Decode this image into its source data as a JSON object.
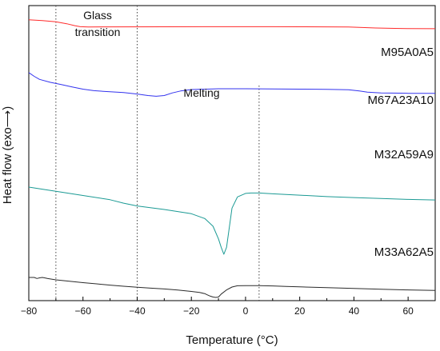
{
  "chart_data": {
    "type": "line",
    "xlabel": "Temperature (°C)",
    "ylabel": "Heat flow (exo⟶)",
    "xlim": [
      -80,
      70
    ],
    "xticks": [
      -80,
      -60,
      -40,
      -20,
      0,
      20,
      40,
      60
    ],
    "grid": false,
    "legend": "none",
    "annotations": {
      "glass_transition": "Glass\ntransition",
      "melting": "Melting"
    },
    "reference_lines_x": [
      -70,
      -40,
      5
    ],
    "series": [
      {
        "name": "M95A0A5",
        "color": "#ff2b2b",
        "x": [
          -80,
          -75,
          -70,
          -66,
          -63,
          -61,
          -58,
          -50,
          -30,
          -10,
          0,
          10,
          20,
          30,
          38,
          42,
          48,
          55,
          60,
          70
        ],
        "y": [
          0.95,
          0.93,
          0.9,
          0.855,
          0.81,
          0.785,
          0.78,
          0.781,
          0.783,
          0.784,
          0.785,
          0.784,
          0.783,
          0.782,
          0.779,
          0.77,
          0.755,
          0.745,
          0.74,
          0.738
        ]
      },
      {
        "name": "M67A23A10",
        "color": "#3333ee",
        "x": [
          -80,
          -78,
          -76,
          -72,
          -68,
          -64,
          -60,
          -56,
          -50,
          -45,
          -40,
          -36,
          -33,
          -30,
          -27,
          -24,
          -20,
          -10,
          0,
          10,
          20,
          30,
          38,
          42,
          45,
          50,
          60,
          70
        ],
        "y": [
          0.8,
          0.75,
          0.71,
          0.67,
          0.64,
          0.61,
          0.58,
          0.56,
          0.545,
          0.535,
          0.515,
          0.495,
          0.485,
          0.495,
          0.53,
          0.555,
          0.575,
          0.585,
          0.585,
          0.582,
          0.58,
          0.578,
          0.572,
          0.555,
          0.54,
          0.53,
          0.525,
          0.525
        ]
      },
      {
        "name": "M32A59A9",
        "color": "#1b9a94",
        "x": [
          -80,
          -75,
          -70,
          -60,
          -50,
          -45,
          -40,
          -30,
          -20,
          -15,
          -12,
          -10,
          -9,
          -8,
          -7,
          -6,
          -5,
          -3,
          0,
          2,
          5,
          10,
          20,
          30,
          40,
          50,
          60,
          70
        ],
        "y": [
          0.52,
          0.505,
          0.49,
          0.46,
          0.43,
          0.405,
          0.385,
          0.36,
          0.33,
          0.295,
          0.24,
          0.15,
          0.09,
          0.04,
          0.09,
          0.23,
          0.37,
          0.45,
          0.475,
          0.478,
          0.478,
          0.472,
          0.462,
          0.452,
          0.445,
          0.438,
          0.432,
          0.428
        ]
      },
      {
        "name": "M33A62A5",
        "color": "#2b2b2b",
        "x": [
          -80,
          -78,
          -77,
          -76,
          -75,
          -74,
          -73,
          -70,
          -65,
          -60,
          -55,
          -50,
          -45,
          -40,
          -35,
          -30,
          -25,
          -20,
          -17,
          -15,
          -14,
          -13,
          -12,
          -11,
          -10,
          -9,
          -7,
          -5,
          -3,
          0,
          3,
          5,
          10,
          15,
          20,
          30,
          40,
          50,
          60,
          70
        ],
        "y": [
          0.24,
          0.24,
          0.228,
          0.236,
          0.24,
          0.235,
          0.227,
          0.212,
          0.195,
          0.178,
          0.163,
          0.148,
          0.135,
          0.122,
          0.112,
          0.102,
          0.088,
          0.072,
          0.06,
          0.045,
          0.03,
          0.015,
          0.005,
          0.0,
          0.005,
          0.04,
          0.09,
          0.125,
          0.14,
          0.142,
          0.142,
          0.141,
          0.138,
          0.133,
          0.127,
          0.118,
          0.108,
          0.098,
          0.09,
          0.085
        ]
      }
    ]
  }
}
